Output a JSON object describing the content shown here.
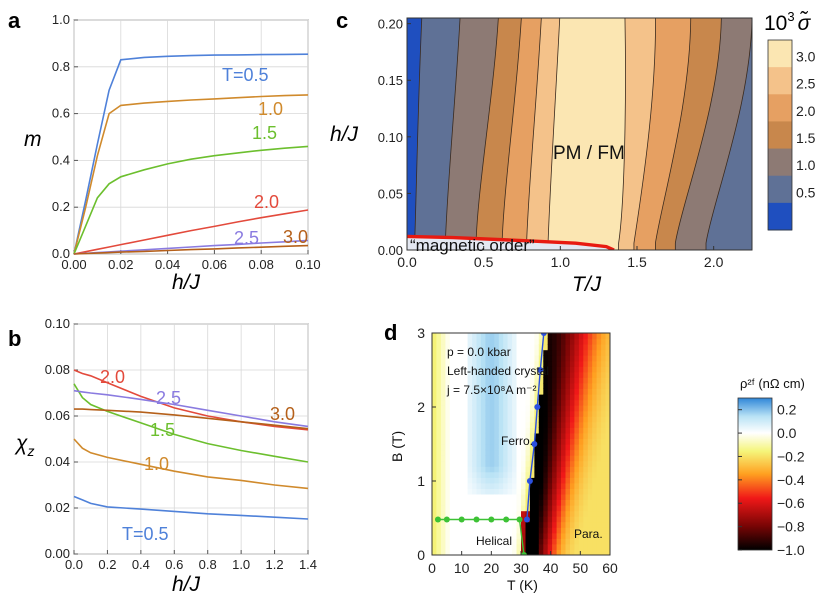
{
  "figure": {
    "panel_labels": [
      "a",
      "b",
      "c",
      "d"
    ]
  },
  "chart_data": [
    {
      "panel": "a",
      "type": "line",
      "xlabel": "h/J",
      "ylabel": "m",
      "xlim": [
        0,
        0.1
      ],
      "ylim": [
        0,
        1
      ],
      "xticks": [
        "0.00",
        "0.02",
        "0.04",
        "0.06",
        "0.08",
        "0.10"
      ],
      "yticks": [
        "0.0",
        "0.2",
        "0.4",
        "0.6",
        "0.8",
        "1.0"
      ],
      "x": [
        0,
        0.005,
        0.01,
        0.015,
        0.02,
        0.03,
        0.04,
        0.05,
        0.06,
        0.07,
        0.08,
        0.09,
        0.1
      ],
      "series": [
        {
          "name": "T=0.5",
          "color": "#4f81d9",
          "values": [
            0,
            0.23,
            0.47,
            0.7,
            0.83,
            0.84,
            0.845,
            0.848,
            0.85,
            0.851,
            0.852,
            0.853,
            0.854
          ]
        },
        {
          "name": "1.0",
          "color": "#d08a2c",
          "values": [
            0,
            0.2,
            0.42,
            0.6,
            0.635,
            0.645,
            0.652,
            0.658,
            0.663,
            0.668,
            0.673,
            0.677,
            0.68
          ]
        },
        {
          "name": "1.5",
          "color": "#6cbf2e",
          "values": [
            0,
            0.12,
            0.24,
            0.3,
            0.33,
            0.36,
            0.385,
            0.405,
            0.42,
            0.432,
            0.443,
            0.452,
            0.46
          ]
        },
        {
          "name": "2.0",
          "color": "#e34a3c",
          "values": [
            0,
            0.01,
            0.02,
            0.03,
            0.04,
            0.06,
            0.08,
            0.1,
            0.118,
            0.137,
            0.155,
            0.172,
            0.188
          ]
        },
        {
          "name": "2.5",
          "color": "#8a7be0",
          "values": [
            0,
            0.003,
            0.006,
            0.009,
            0.012,
            0.018,
            0.024,
            0.03,
            0.036,
            0.041,
            0.047,
            0.052,
            0.058
          ]
        },
        {
          "name": "3.0",
          "color": "#b5601a",
          "values": [
            0,
            0.002,
            0.004,
            0.006,
            0.008,
            0.011,
            0.015,
            0.019,
            0.022,
            0.026,
            0.029,
            0.033,
            0.036
          ]
        }
      ]
    },
    {
      "panel": "b",
      "type": "line",
      "xlabel": "h/J",
      "ylabel": "χz",
      "ylabel_main": "χ",
      "ylabel_sub": "z",
      "xlim": [
        0,
        1.4
      ],
      "ylim": [
        0,
        0.1
      ],
      "xticks": [
        "0.0",
        "0.2",
        "0.4",
        "0.6",
        "0.8",
        "1.0",
        "1.2",
        "1.4"
      ],
      "yticks": [
        "0.00",
        "0.02",
        "0.04",
        "0.06",
        "0.08",
        "0.10"
      ],
      "x": [
        0,
        0.05,
        0.1,
        0.2,
        0.4,
        0.6,
        0.8,
        1.0,
        1.2,
        1.4
      ],
      "series": [
        {
          "name": "T=0.5",
          "color": "#4f81d9",
          "values": [
            0.025,
            0.0235,
            0.022,
            0.0205,
            0.0195,
            0.0185,
            0.0175,
            0.0168,
            0.016,
            0.0152
          ]
        },
        {
          "name": "1.0",
          "color": "#d08a2c",
          "values": [
            0.05,
            0.046,
            0.044,
            0.042,
            0.039,
            0.036,
            0.0335,
            0.032,
            0.03,
            0.0285
          ]
        },
        {
          "name": "1.5",
          "color": "#6cbf2e",
          "values": [
            0.074,
            0.068,
            0.065,
            0.062,
            0.057,
            0.052,
            0.048,
            0.045,
            0.0425,
            0.04
          ]
        },
        {
          "name": "2.0",
          "color": "#e34a3c",
          "values": [
            0.08,
            0.0785,
            0.0775,
            0.0745,
            0.0685,
            0.0635,
            0.06,
            0.0575,
            0.0555,
            0.054
          ]
        },
        {
          "name": "2.5",
          "color": "#8a7be0",
          "values": [
            0.071,
            0.0705,
            0.07,
            0.0692,
            0.0672,
            0.065,
            0.0625,
            0.06,
            0.0575,
            0.0555
          ]
        },
        {
          "name": "3.0",
          "color": "#b5601a",
          "values": [
            0.063,
            0.063,
            0.0628,
            0.0625,
            0.0617,
            0.0605,
            0.059,
            0.0575,
            0.056,
            0.0545
          ]
        }
      ]
    },
    {
      "panel": "c",
      "type": "heatmap",
      "xlabel": "T/J",
      "ylabel": "h/J",
      "xlim": [
        0,
        2.25
      ],
      "ylim": [
        0,
        0.205
      ],
      "xticks": [
        "0.0",
        "0.5",
        "1.0",
        "1.5",
        "2.0"
      ],
      "yticks": [
        "0.00",
        "0.05",
        "0.10",
        "0.15",
        "0.20"
      ],
      "annotation_center": "PM / FM",
      "annotation_low": "“magnetic order”",
      "colorbar_title_prefix": "10",
      "colorbar_title_exp": "3",
      "colorbar_title_symbol": "σ̃",
      "colorbar_ticks": [
        "3.0",
        "2.5",
        "2.0",
        "1.5",
        "1.0",
        "0.5"
      ],
      "levels": [
        0.5,
        1.0,
        1.5,
        2.0,
        2.5,
        3.0
      ],
      "colors": [
        "#1f4fbf",
        "#5f7196",
        "#8d7a74",
        "#c8874c",
        "#e6a062",
        "#f4c28a",
        "#fbe6b2"
      ],
      "contour_T_at_h0": {
        "left": [
          0.05,
          0.25,
          0.45,
          0.62,
          0.78,
          0.92
        ],
        "right": [
          2.25,
          1.95,
          1.75,
          1.62,
          1.48,
          1.38
        ]
      },
      "contour_T_at_h020": {
        "left": [
          0.1,
          0.35,
          0.6,
          0.75,
          0.88,
          1.0
        ],
        "right": [
          2.25,
          2.25,
          2.05,
          1.85,
          1.62,
          1.42
        ]
      },
      "order_boundary": [
        [
          0,
          0.012
        ],
        [
          0.3,
          0.011
        ],
        [
          0.8,
          0.008
        ],
        [
          1.1,
          0.006
        ],
        [
          1.3,
          0.003
        ],
        [
          1.35,
          0
        ]
      ]
    },
    {
      "panel": "d",
      "type": "heatmap",
      "xlabel": "T (K)",
      "ylabel": "B (T)",
      "xlim": [
        0,
        60
      ],
      "ylim": [
        0,
        3
      ],
      "xticks": [
        "0",
        "10",
        "20",
        "30",
        "40",
        "50",
        "60"
      ],
      "yticks": [
        "0",
        "1",
        "2",
        "3"
      ],
      "info_lines": [
        "p = 0.0 kbar",
        "Left-handed crystal",
        "j = 7.5×10⁸A m⁻²"
      ],
      "region_labels": [
        "Ferro.",
        "Helical",
        "Para."
      ],
      "colorbar_title": "ρ²ᶠ (nΩ cm)",
      "colorbar_ticks": [
        "0.2",
        "0.0",
        "−0.2",
        "−0.4",
        "−0.6",
        "−0.8",
        "−1.0"
      ],
      "colorbar_range": [
        -1.0,
        0.3
      ],
      "blue_boundary": {
        "T": [
          32,
          33,
          34,
          35,
          36,
          37,
          38
        ],
        "B": [
          0.5,
          1.0,
          1.5,
          2.0,
          2.5,
          3.0,
          3.0
        ],
        "color": "#2b50e0"
      },
      "blue_boundary_points": [
        [
          32,
          0.48
        ],
        [
          33,
          1.0
        ],
        [
          34.5,
          1.5
        ],
        [
          35.5,
          2.0
        ],
        [
          36.5,
          2.5
        ],
        [
          37.7,
          3.0
        ]
      ],
      "green_boundary_points": [
        [
          2,
          0.48
        ],
        [
          5,
          0.48
        ],
        [
          10,
          0.48
        ],
        [
          15,
          0.48
        ],
        [
          20,
          0.48
        ],
        [
          25,
          0.48
        ],
        [
          29.5,
          0.48
        ],
        [
          31,
          0
        ]
      ],
      "green_color": "#3dc235"
    }
  ]
}
